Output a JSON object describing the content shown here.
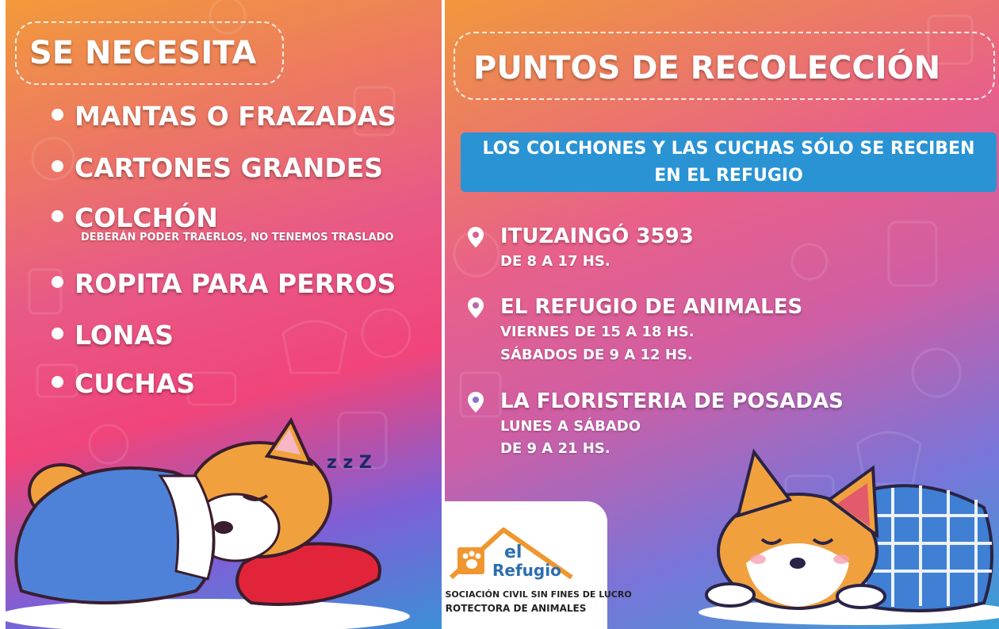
{
  "left": {
    "heading": "SE NECESITA",
    "items": [
      {
        "label": "MANTAS O FRAZADAS"
      },
      {
        "label": "CARTONES GRANDES"
      },
      {
        "label": "COLCHÓN",
        "note": "DEBERÁN PODER TRAERLOS, NO TENEMOS TRASLADO"
      },
      {
        "label": "ROPITA PARA PERROS"
      },
      {
        "label": "LONAS"
      },
      {
        "label": "CUCHAS"
      }
    ],
    "sleep_text": "z z Z"
  },
  "right": {
    "heading": "PUNTOS DE RECOLECCIÓN",
    "banner_line1": "LOS COLCHONES Y LAS CUCHAS SÓLO SE RECIBEN",
    "banner_line2": "EN EL REFUGIO",
    "locations": [
      {
        "name": "ITUZAINGÓ 3593",
        "lines": [
          "DE 8 A 17 HS."
        ]
      },
      {
        "name": "EL REFUGIO DE ANIMALES",
        "lines": [
          "VIERNES DE 15 A 18 HS.",
          "SÁBADOS DE 9 A 12 HS."
        ]
      },
      {
        "name": "LA FLORISTERIA DE POSADAS",
        "lines": [
          "LUNES A SÁBADO",
          "DE 9 A 21 HS."
        ]
      }
    ],
    "logo": {
      "word1": "el",
      "word2": "Refugio",
      "org_line1": "ASOCIACIÓN CIVIL SIN FINES DE LUCRO",
      "org_line2": "PROTECTORA DE ANIMALES"
    }
  },
  "colors": {
    "banner_blue": "#2a93d4",
    "logo_orange": "#f0962f",
    "logo_blue": "#2b6fb0",
    "dog_orange": "#f0a13e",
    "blanket_blue": "#4e82d8",
    "pillow_red": "#e2243a"
  },
  "icons": [
    "map-pin-icon",
    "paw-icon",
    "house-roof-icon"
  ]
}
